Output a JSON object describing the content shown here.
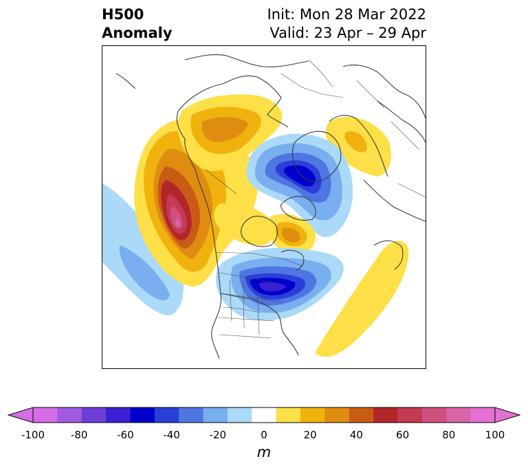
{
  "title": {
    "left_line1": "H500",
    "left_line2": "Anomaly",
    "right_line1": "Init: Mon 28 Mar 2022",
    "right_line2": "Valid: 23 Apr – 29 Apr"
  },
  "colorbar": {
    "unit": "m",
    "extend": "both",
    "levels": [
      -100,
      -90,
      -80,
      -70,
      -60,
      -50,
      -40,
      -30,
      -20,
      -10,
      10,
      20,
      30,
      40,
      50,
      60,
      70,
      80,
      90,
      100
    ],
    "colors": [
      "#d36ee6",
      "#a25ae0",
      "#6d3fd6",
      "#3a1fd4",
      "#0000cc",
      "#2a3fd9",
      "#4f75e3",
      "#79aeef",
      "#abd9f8",
      "#ffffff",
      "#fde047",
      "#f1b20e",
      "#df8d10",
      "#c95c14",
      "#b2262a",
      "#c33a52",
      "#cf4f7e",
      "#d765a8",
      "#e372d2"
    ],
    "under_color": "#d36ee6",
    "over_color": "#e372d2",
    "tick_labels": [
      "-100",
      "-80",
      "-60",
      "-40",
      "-20",
      "0",
      "20",
      "40",
      "60",
      "80",
      "100"
    ]
  },
  "map": {
    "projection": "north-polar-stereographic",
    "region": "Northern Hemisphere",
    "features": [
      "coastlines",
      "country-borders",
      "us-state-borders"
    ],
    "anomaly_centers": [
      {
        "label": "ridge-northeast-pacific-west-coast",
        "sign": "positive",
        "max_m": 80
      },
      {
        "label": "trough-eastern-canada-great-lakes",
        "sign": "negative",
        "min_m": -70
      },
      {
        "label": "trough-arctic-greenland",
        "sign": "negative",
        "min_m": -60
      },
      {
        "label": "ridge-alaska-yukon",
        "sign": "positive",
        "max_m": 40
      },
      {
        "label": "ridge-scandinavia",
        "sign": "positive",
        "max_m": 40
      },
      {
        "label": "ridge-north-atlantic",
        "sign": "positive",
        "max_m": 20
      },
      {
        "label": "ridge-hudson-bay",
        "sign": "positive",
        "max_m": 40
      },
      {
        "label": "trough-north-pacific",
        "sign": "negative",
        "min_m": -30
      }
    ]
  }
}
